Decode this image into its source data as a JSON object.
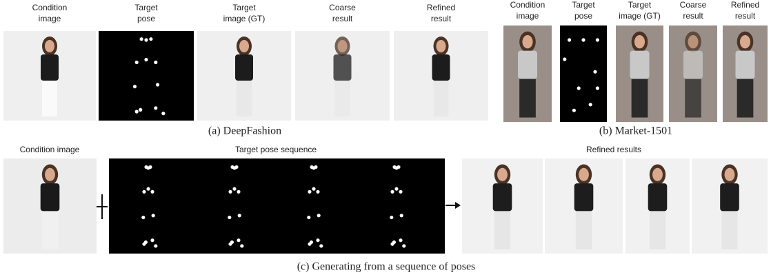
{
  "panel_a": {
    "columns": [
      [
        "Condition",
        "image"
      ],
      [
        "Target",
        "pose"
      ],
      [
        "Target",
        "image (GT)"
      ],
      [
        "Coarse",
        "result"
      ],
      [
        "Refined",
        "result"
      ]
    ],
    "caption": "(a)  DeepFashion"
  },
  "panel_b": {
    "columns": [
      [
        "Condition",
        "image"
      ],
      [
        "Target",
        "pose"
      ],
      [
        "Target",
        "image (GT)"
      ],
      [
        "Coarse",
        "result"
      ],
      [
        "Refined",
        "result"
      ]
    ],
    "caption": "(b) Market-1501"
  },
  "panel_c": {
    "condition_label": "Condition image",
    "pose_label": "Target pose sequence",
    "results_label": "Refined results",
    "caption": "(c) Generating from a sequence of poses"
  }
}
